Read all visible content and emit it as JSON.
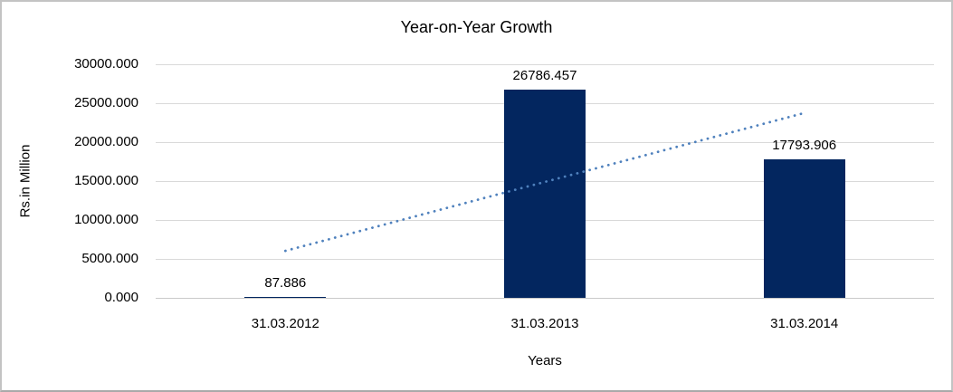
{
  "chart_data": {
    "type": "bar",
    "title": "Year-on-Year Growth",
    "categories": [
      "31.03.2012",
      "31.03.2013",
      "31.03.2014"
    ],
    "values": [
      87.886,
      26786.457,
      17793.906
    ],
    "data_labels": [
      "87.886",
      "26786.457",
      "17793.906"
    ],
    "xlabel": "Years",
    "ylabel": "Rs.in Million",
    "ylim": [
      0,
      30000
    ],
    "y_tick_step": 5000,
    "y_tick_decimals": 3,
    "y_tick_labels": [
      "0.000",
      "5000.000",
      "10000.000",
      "15000.000",
      "20000.000",
      "25000.000",
      "30000.000"
    ],
    "grid": true,
    "legend": "none",
    "trendline": {
      "style": "dotted",
      "kind": "linear"
    },
    "colors": {
      "bar": "#03265f",
      "trendline": "#4f81bd",
      "gridline": "#d9d9d9",
      "text": "#000000",
      "frame_border": "#c3c3c3",
      "background": "#ffffff"
    }
  }
}
